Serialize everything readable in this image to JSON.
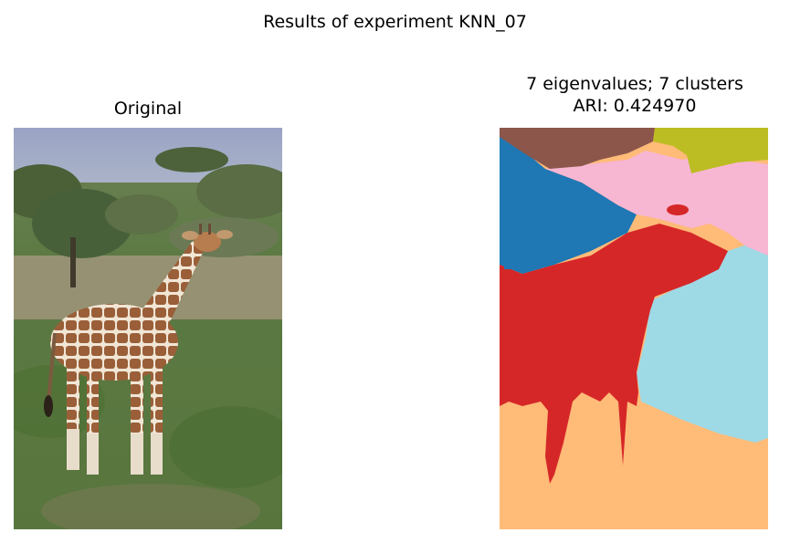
{
  "figure": {
    "suptitle": "Results of experiment KNN_07",
    "left_title": "Original",
    "right_title_line1": "7 eigenvalues; 7 clusters",
    "right_title_line2": "ARI: 0.424970"
  },
  "images": {
    "original": "photo of a giraffe standing in grassland with acacia trees",
    "segmentation": "spectral clustering label map with 7 colored regions"
  },
  "cluster_colors": [
    "#8c564b",
    "#bcbd22",
    "#f7b6d2",
    "#1f77b4",
    "#d62728",
    "#9edae5",
    "#ffbb78"
  ]
}
